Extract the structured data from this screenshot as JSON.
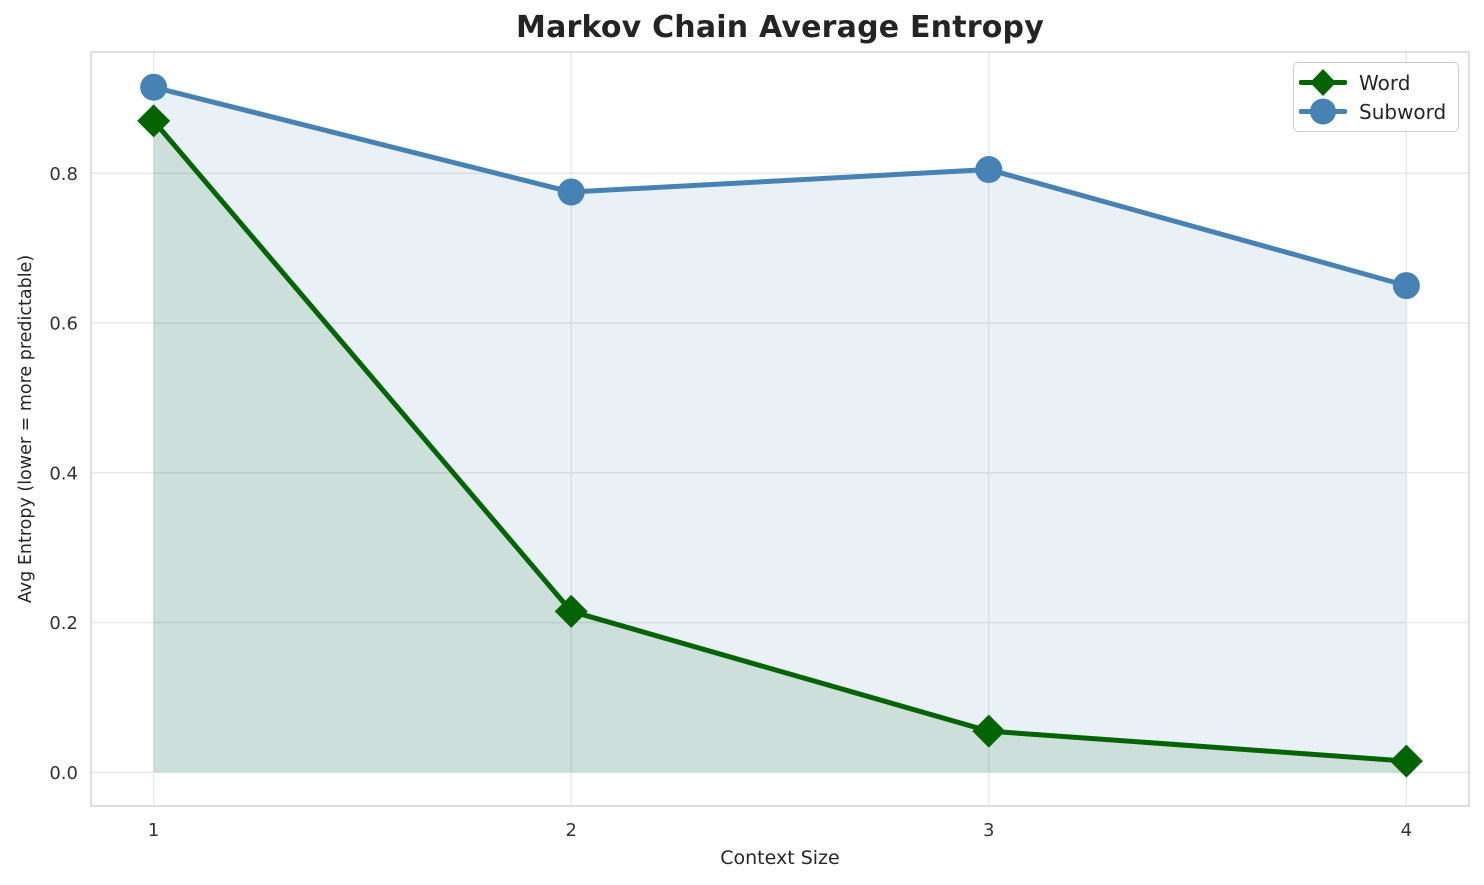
{
  "chart_data": {
    "type": "line",
    "title": "Markov Chain Average Entropy",
    "xlabel": "Context Size",
    "ylabel": "Avg Entropy (lower = more predictable)",
    "x": [
      1,
      2,
      3,
      4
    ],
    "series": [
      {
        "name": "Word",
        "values": [
          0.87,
          0.215,
          0.055,
          0.015
        ],
        "color": "#046404",
        "marker": "diamond",
        "fill_opacity": 0.12
      },
      {
        "name": "Subword",
        "values": [
          0.915,
          0.775,
          0.805,
          0.65
        ],
        "color": "#4682b4",
        "marker": "circle",
        "fill_opacity": 0.12
      }
    ],
    "xticks": [
      1,
      2,
      3,
      4
    ],
    "yticks": [
      0.0,
      0.2,
      0.4,
      0.6,
      0.8
    ],
    "xlim": [
      0.85,
      4.15
    ],
    "ylim": [
      -0.045,
      0.962
    ],
    "grid": true,
    "area_fill_baseline": 0,
    "legend_position": "upper right",
    "colors": {
      "grid": "#e8e8e8",
      "spine": "#d4d4d4",
      "tick_text": "#333333",
      "title_text": "#242424"
    }
  }
}
